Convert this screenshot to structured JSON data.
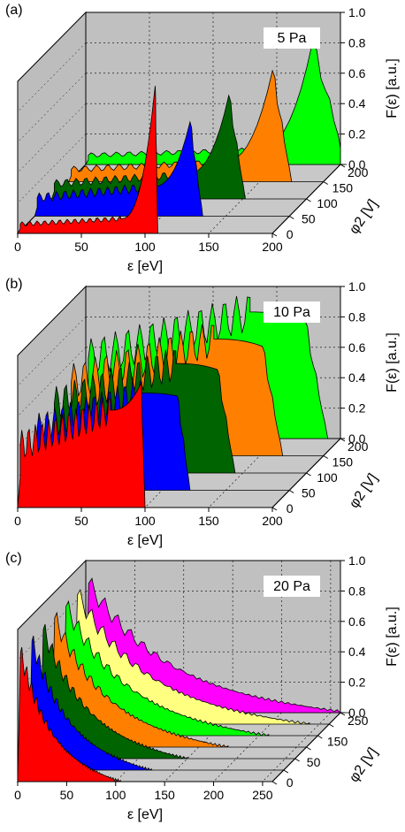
{
  "chart_data": [
    {
      "type": "area",
      "panel_label": "(a)",
      "annotation": "5 Pa",
      "xlabel": "ε [eV]",
      "ylabel": "F(ε) [a.u.]",
      "zlabel": "φ2 [V]",
      "xticks": [
        "0",
        "50",
        "100",
        "150",
        "200"
      ],
      "xlim": [
        0,
        200
      ],
      "yticks": [
        "0.0",
        "0.2",
        "0.4",
        "0.6",
        "0.8",
        "1.0"
      ],
      "ylim": [
        0,
        1
      ],
      "zticks": [
        "0",
        "50",
        "100",
        "150",
        "200"
      ],
      "grid": true,
      "series": [
        {
          "phi2": 0,
          "color": "#ff0000",
          "plateau": 0.06,
          "peak_e": 108,
          "peak_f": 0.97,
          "end_e": 110
        },
        {
          "phi2": 50,
          "color": "#0000ff",
          "plateau": 0.12,
          "peak_e": 122,
          "peak_f": 0.62,
          "end_e": 132
        },
        {
          "phi2": 100,
          "color": "#006400",
          "plateau": 0.1,
          "peak_e": 139,
          "peak_f": 0.68,
          "end_e": 152
        },
        {
          "phi2": 150,
          "color": "#ff8000",
          "plateau": 0.08,
          "peak_e": 160,
          "peak_f": 0.73,
          "end_e": 175
        },
        {
          "phi2": 200,
          "color": "#00ff00",
          "plateau": 0.06,
          "peak_e": 178,
          "peak_f": 0.8,
          "end_e": 205
        }
      ]
    },
    {
      "type": "area",
      "panel_label": "(b)",
      "annotation": "10 Pa",
      "xlabel": "ε [eV]",
      "ylabel": "F(ε) [a.u.]",
      "zlabel": "φ2 [V]",
      "xticks": [
        "0",
        "50",
        "100",
        "150",
        "200"
      ],
      "xlim": [
        0,
        200
      ],
      "yticks": [
        "0.0",
        "0.2",
        "0.4",
        "0.6",
        "0.8",
        "1.0"
      ],
      "ylim": [
        0,
        1
      ],
      "zticks": [
        "0",
        "50",
        "100",
        "150",
        "200"
      ],
      "grid": true,
      "series": [
        {
          "phi2": 0,
          "color": "#ff0000",
          "plateau": 0.4,
          "peak_e": 97,
          "peak_f": 0.82,
          "end_e": 100
        },
        {
          "phi2": 50,
          "color": "#0000ff",
          "plateau": 0.4,
          "peak_e": 112,
          "peak_f": 0.62,
          "end_e": 122
        },
        {
          "phi2": 100,
          "color": "#006400",
          "plateau": 0.45,
          "peak_e": 130,
          "peak_f": 0.68,
          "end_e": 144
        },
        {
          "phi2": 150,
          "color": "#ff8000",
          "plateau": 0.48,
          "peak_e": 152,
          "peak_f": 0.72,
          "end_e": 168
        },
        {
          "phi2": 200,
          "color": "#00ff00",
          "plateau": 0.52,
          "peak_e": 172,
          "peak_f": 0.78,
          "end_e": 190
        }
      ]
    },
    {
      "type": "area",
      "panel_label": "(c)",
      "annotation": "20 Pa",
      "xlabel": "ε [eV]",
      "ylabel": "F(ε) [a.u.]",
      "zlabel": "φ2 [V]",
      "xticks": [
        "0",
        "50",
        "100",
        "150",
        "200",
        "250"
      ],
      "xlim": [
        0,
        260
      ],
      "yticks": [
        "0.0",
        "0.2",
        "0.4",
        "0.6",
        "0.8",
        "1.0"
      ],
      "ylim": [
        0,
        1
      ],
      "zticks": [
        "0",
        "50",
        "150",
        "250"
      ],
      "grid": true,
      "series": [
        {
          "phi2": 0,
          "color": "#ff0000",
          "start_f": 0.85,
          "end_e": 105
        },
        {
          "phi2": 50,
          "color": "#0000ff",
          "start_f": 0.85,
          "end_e": 125
        },
        {
          "phi2": 100,
          "color": "#006400",
          "start_f": 0.85,
          "end_e": 150
        },
        {
          "phi2": 150,
          "color": "#ff8000",
          "start_f": 0.85,
          "end_e": 180
        },
        {
          "phi2": 200,
          "color": "#00ff00",
          "start_f": 0.85,
          "end_e": 210
        },
        {
          "phi2": 250,
          "color": "#ffff80",
          "start_f": 0.85,
          "end_e": 240
        },
        {
          "phi2": 300,
          "color": "#ff00ff",
          "start_f": 0.85,
          "end_e": 270
        }
      ]
    }
  ]
}
